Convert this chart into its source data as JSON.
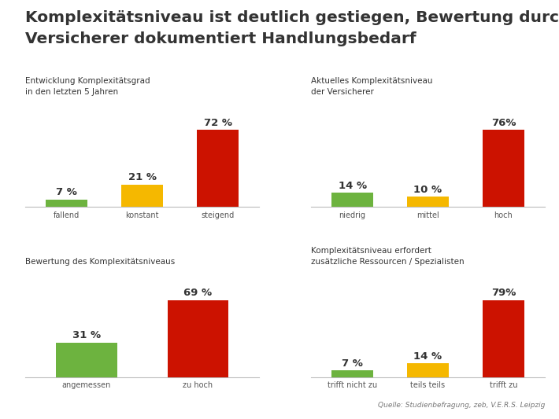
{
  "title_line1": "Komplexitätsniveau ist deutlich gestiegen, Bewertung durch",
  "title_line2": "Versicherer dokumentiert Handlungsbedarf",
  "title_fontsize": 14.5,
  "background_color": "#ffffff",
  "source_text": "Quelle: Studienbefragung, zeb, V.E.R.S. Leipzig",
  "charts": [
    {
      "subtitle": "Entwicklung Komplexitätsgrad\nin den letzten 5 Jahren",
      "categories": [
        "fallend",
        "konstant",
        "steigend"
      ],
      "values": [
        7,
        21,
        72
      ],
      "colors": [
        "#6db33f",
        "#f5b800",
        "#cc1200"
      ],
      "value_labels": [
        "7 %",
        "21 %",
        "72 %"
      ]
    },
    {
      "subtitle": "Aktuelles Komplexitätsniveau\nder Versicherer",
      "categories": [
        "niedrig",
        "mittel",
        "hoch"
      ],
      "values": [
        14,
        10,
        76
      ],
      "colors": [
        "#6db33f",
        "#f5b800",
        "#cc1200"
      ],
      "value_labels": [
        "14 %",
        "10 %",
        "76%"
      ]
    },
    {
      "subtitle": "Bewertung des Komplexitätsniveaus",
      "categories": [
        "angemessen",
        "zu hoch"
      ],
      "values": [
        31,
        69
      ],
      "colors": [
        "#6db33f",
        "#cc1200"
      ],
      "value_labels": [
        "31 %",
        "69 %"
      ]
    },
    {
      "subtitle": "Komplexitätsniveau erfordert\nzusätzliche Ressourcen / Spezialisten",
      "categories": [
        "trifft nicht zu",
        "teils teils",
        "trifft zu"
      ],
      "values": [
        7,
        14,
        79
      ],
      "colors": [
        "#6db33f",
        "#f5b800",
        "#cc1200"
      ],
      "value_labels": [
        "7 %",
        "14 %",
        "79%"
      ]
    }
  ]
}
